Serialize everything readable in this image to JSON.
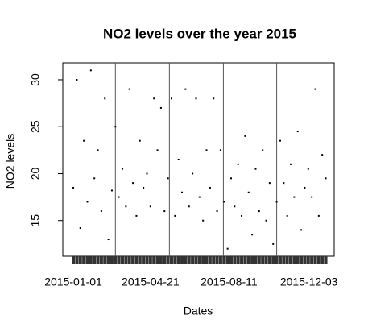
{
  "chart_data": {
    "type": "scatter",
    "title": "NO2 levels over the year 2015",
    "x_label": "Dates",
    "y_label": "NO2 levels",
    "x": [
      "2015-01-01",
      "2015-01-06",
      "2015-01-11",
      "2015-01-16",
      "2015-01-21",
      "2015-01-26",
      "2015-01-31",
      "2015-02-05",
      "2015-02-10",
      "2015-02-15",
      "2015-02-20",
      "2015-02-25",
      "2015-03-02",
      "2015-03-07",
      "2015-03-12",
      "2015-03-17",
      "2015-03-22",
      "2015-03-27",
      "2015-04-01",
      "2015-04-06",
      "2015-04-11",
      "2015-04-16",
      "2015-04-21",
      "2015-04-26",
      "2015-05-01",
      "2015-05-06",
      "2015-05-11",
      "2015-05-16",
      "2015-05-21",
      "2015-05-26",
      "2015-05-31",
      "2015-06-05",
      "2015-06-10",
      "2015-06-15",
      "2015-06-20",
      "2015-06-25",
      "2015-06-30",
      "2015-07-05",
      "2015-07-10",
      "2015-07-15",
      "2015-07-20",
      "2015-07-25",
      "2015-07-30",
      "2015-08-04",
      "2015-08-09",
      "2015-08-14",
      "2015-08-19",
      "2015-08-24",
      "2015-08-29",
      "2015-09-03",
      "2015-09-08",
      "2015-09-13",
      "2015-09-18",
      "2015-09-23",
      "2015-09-28",
      "2015-10-03",
      "2015-10-08",
      "2015-10-13",
      "2015-10-18",
      "2015-10-23",
      "2015-10-28",
      "2015-11-02",
      "2015-11-07",
      "2015-11-12",
      "2015-11-17",
      "2015-11-22",
      "2015-11-27",
      "2015-12-02",
      "2015-12-07",
      "2015-12-12",
      "2015-12-17",
      "2015-12-22",
      "2015-12-27"
    ],
    "values": [
      18.5,
      30,
      14.2,
      23.5,
      17,
      31,
      19.5,
      22.5,
      16,
      28,
      13,
      18.2,
      25,
      17.5,
      20.5,
      16.5,
      29,
      19,
      15.5,
      23.5,
      18.5,
      20,
      16.5,
      28,
      22.5,
      27,
      16,
      19.5,
      28,
      15.5,
      21.5,
      18,
      29,
      16.5,
      20,
      28,
      17.5,
      15,
      22.5,
      18.5,
      28,
      16,
      22.5,
      17,
      12,
      19.5,
      16.5,
      21,
      15.5,
      24,
      18,
      13.5,
      20.5,
      16,
      22.5,
      15,
      19,
      12.5,
      17,
      23.5,
      19,
      15.5,
      21,
      17.5,
      24.5,
      14,
      18.5,
      20.5,
      17.5,
      29,
      15.5,
      22,
      19.5
    ],
    "color": "#000000",
    "vlines": [
      "2015-03-02",
      "2015-05-18",
      "2015-08-03",
      "2015-10-18"
    ],
    "xlim": [
      "2014-12-17",
      "2016-01-08"
    ],
    "xticks": [
      "2015-01-01",
      "2015-04-21",
      "2015-08-11",
      "2015-12-03"
    ],
    "ylim": [
      11.2,
      31.8
    ],
    "yticks": [
      15,
      20,
      25,
      30
    ]
  }
}
